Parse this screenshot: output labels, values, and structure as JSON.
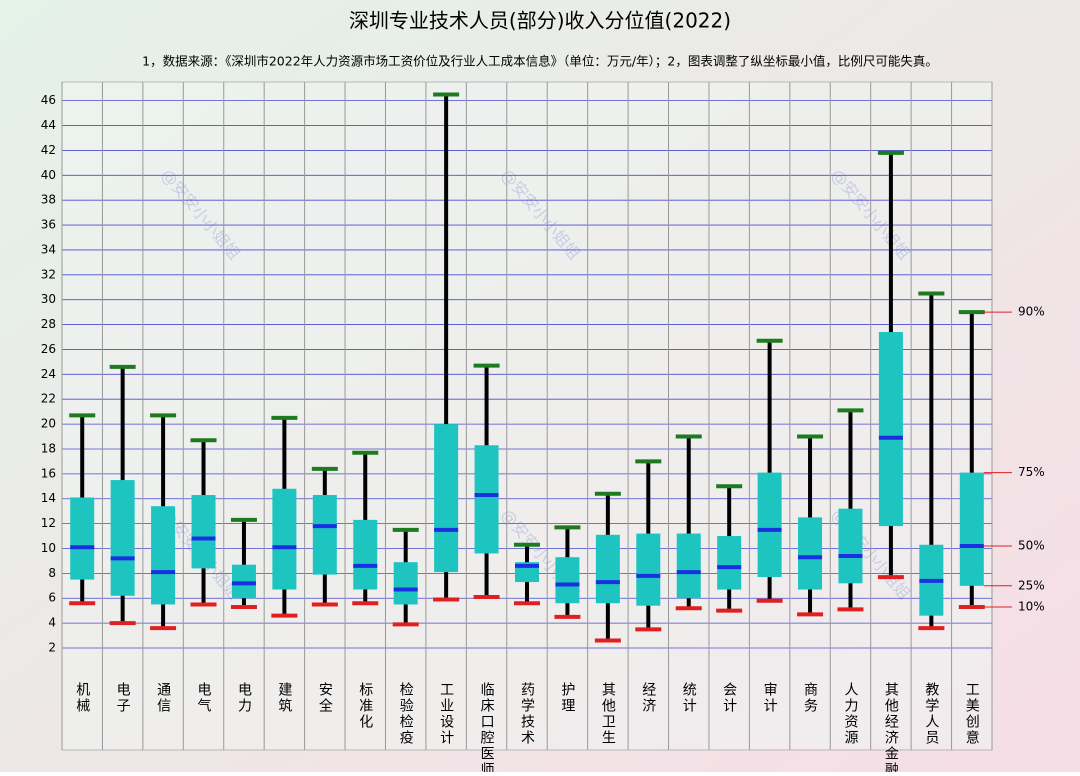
{
  "chart_data": {
    "type": "box",
    "title": "深圳专业技术人员(部分)收入分位值(2022)",
    "subtitle": "1，数据来源：《深圳市2022年人力资源市场工资价位及行业人工成本信息》（单位：万元/年）；2，图表调整了纵坐标最小值，比例尺可能失真。",
    "watermark": "@安安小小姐姐",
    "categories": [
      "机械",
      "电子",
      "通信",
      "电气",
      "电力",
      "建筑",
      "安全",
      "标准化",
      "检验检疫",
      "工业设计",
      "临床口腔医师",
      "药学技术",
      "护理",
      "其他卫生",
      "经济",
      "统计",
      "会计",
      "审计",
      "商务",
      "人力资源",
      "其他经济金融",
      "教学人员",
      "工美创意"
    ],
    "whisker_high": [
      20.7,
      24.6,
      20.7,
      18.7,
      12.3,
      20.5,
      16.4,
      17.7,
      11.5,
      46.5,
      24.7,
      10.3,
      11.7,
      14.4,
      17.0,
      19.0,
      15.0,
      26.7,
      19.0,
      21.1,
      41.8,
      30.5,
      29.0
    ],
    "q3": [
      14.1,
      15.5,
      13.4,
      14.3,
      8.7,
      14.8,
      14.3,
      12.3,
      8.9,
      20.0,
      18.3,
      8.9,
      9.3,
      11.1,
      11.2,
      11.2,
      11.0,
      16.1,
      12.5,
      13.2,
      27.4,
      10.3,
      16.1
    ],
    "median": [
      10.1,
      9.2,
      8.1,
      10.8,
      7.2,
      10.1,
      11.8,
      8.6,
      6.7,
      11.5,
      14.3,
      8.6,
      7.1,
      7.3,
      7.8,
      8.1,
      8.5,
      11.5,
      9.3,
      9.4,
      18.9,
      7.4,
      10.2
    ],
    "q1": [
      7.5,
      6.2,
      5.5,
      8.4,
      6.0,
      6.7,
      7.9,
      6.7,
      5.5,
      8.1,
      9.6,
      7.3,
      5.6,
      5.6,
      5.4,
      6.0,
      6.7,
      7.7,
      6.7,
      7.2,
      11.8,
      4.6,
      7.0
    ],
    "whisker_low": [
      5.6,
      4.0,
      3.6,
      5.5,
      5.3,
      4.6,
      5.5,
      5.6,
      3.9,
      5.9,
      6.1,
      5.6,
      4.5,
      2.6,
      3.5,
      5.2,
      5.0,
      5.8,
      4.7,
      5.1,
      7.7,
      3.6,
      5.3
    ],
    "percentile_labels": [
      "90%",
      "75%",
      "50%",
      "25%",
      "10%"
    ],
    "ylim": [
      2,
      47.5
    ],
    "yticks": [
      2,
      4,
      6,
      8,
      10,
      12,
      14,
      16,
      18,
      20,
      22,
      24,
      26,
      28,
      30,
      32,
      34,
      36,
      38,
      40,
      42,
      44,
      46
    ],
    "grid": true,
    "box_color": "#1ec4c0",
    "median_color": "#1a2fe0",
    "whisker_color": "#000000",
    "high_cap_color": "#1e7a1e",
    "low_cap_color": "#e02020",
    "annotation_color": "#e02020"
  }
}
